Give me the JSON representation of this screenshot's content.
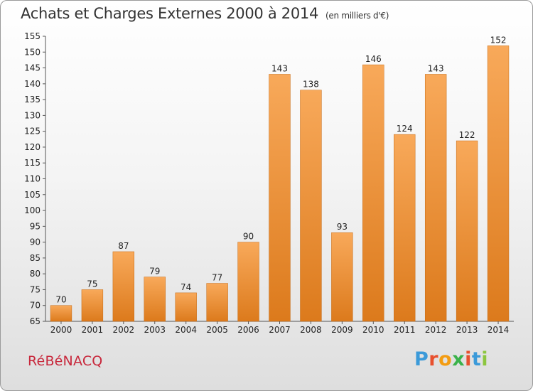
{
  "title": "Achats et Charges Externes 2000 à 2014",
  "unit": "(en milliers d'€)",
  "commune": "RéBéNACQ",
  "logo": {
    "text": "Proxiti",
    "colors": [
      "#3b9ad9",
      "#e8502e",
      "#f39c12",
      "#3bb24a",
      "#e8502e",
      "#3b9ad9",
      "#8cc63f"
    ]
  },
  "colors": {
    "bar_light": "#f8a95a",
    "bar_dark": "#dc7a1c",
    "axis": "#555555",
    "grid": "#cfcfcf"
  },
  "chart_data": {
    "type": "bar",
    "title": "Achats et Charges Externes 2000 à 2014",
    "categories": [
      "2000",
      "2001",
      "2002",
      "2003",
      "2004",
      "2005",
      "2006",
      "2007",
      "2008",
      "2009",
      "2010",
      "2011",
      "2012",
      "2013",
      "2014"
    ],
    "values": [
      70,
      75,
      87,
      79,
      74,
      77,
      90,
      143,
      138,
      93,
      146,
      124,
      143,
      122,
      152
    ],
    "ylim": [
      65,
      155
    ],
    "yticks": [
      65,
      70,
      75,
      80,
      85,
      90,
      95,
      100,
      105,
      110,
      115,
      120,
      125,
      130,
      135,
      140,
      145,
      150,
      155
    ],
    "grid": false
  }
}
